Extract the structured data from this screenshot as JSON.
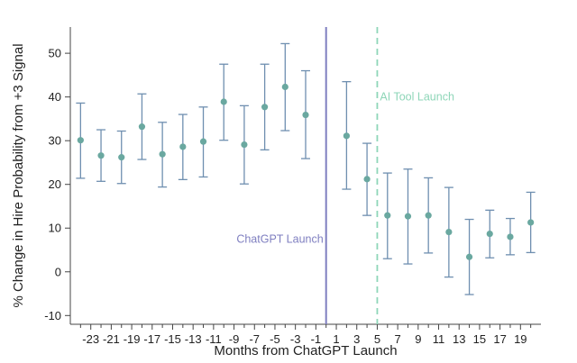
{
  "chart_data": {
    "type": "scatter",
    "xlabel": "Months from ChatGPT Launch",
    "ylabel": "% Change in Hire Probability from +3 Signal",
    "xlim": [
      -25,
      21
    ],
    "ylim": [
      -12,
      56
    ],
    "x_ticks": [
      -23,
      -21,
      -19,
      -17,
      -15,
      -13,
      -11,
      -9,
      -7,
      -5,
      -3,
      -1,
      1,
      3,
      5,
      7,
      9,
      11,
      13,
      15,
      17,
      19
    ],
    "y_ticks": [
      -10,
      0,
      10,
      20,
      30,
      40,
      50
    ],
    "colors": {
      "point": "#6aa8a0",
      "errorbar": "#6f8fb0",
      "chatgpt_line": "#7f7fc0",
      "tool_line": "#8ed6b8"
    },
    "series": [
      {
        "points": [
          {
            "x": -24,
            "y": 30.1,
            "lo": 21.4,
            "hi": 38.6
          },
          {
            "x": -22,
            "y": 26.6,
            "lo": 20.7,
            "hi": 32.5
          },
          {
            "x": -20,
            "y": 26.2,
            "lo": 20.2,
            "hi": 32.2
          },
          {
            "x": -18,
            "y": 33.2,
            "lo": 25.7,
            "hi": 40.7
          },
          {
            "x": -16,
            "y": 26.9,
            "lo": 19.4,
            "hi": 34.2
          },
          {
            "x": -14,
            "y": 28.6,
            "lo": 21.1,
            "hi": 36.0
          },
          {
            "x": -12,
            "y": 29.8,
            "lo": 21.7,
            "hi": 37.7
          },
          {
            "x": -10,
            "y": 38.9,
            "lo": 30.1,
            "hi": 47.5
          },
          {
            "x": -8,
            "y": 29.1,
            "lo": 20.1,
            "hi": 38.0
          },
          {
            "x": -6,
            "y": 37.7,
            "lo": 27.9,
            "hi": 47.5
          },
          {
            "x": -4,
            "y": 42.3,
            "lo": 32.3,
            "hi": 52.2
          },
          {
            "x": -2,
            "y": 35.9,
            "lo": 25.9,
            "hi": 46.0
          },
          {
            "x": 2,
            "y": 31.1,
            "lo": 18.9,
            "hi": 43.5
          },
          {
            "x": 4,
            "y": 21.2,
            "lo": 12.9,
            "hi": 29.4
          },
          {
            "x": 6,
            "y": 12.9,
            "lo": 3.0,
            "hi": 22.6
          },
          {
            "x": 8,
            "y": 12.7,
            "lo": 1.8,
            "hi": 23.5
          },
          {
            "x": 10,
            "y": 12.9,
            "lo": 4.3,
            "hi": 21.5
          },
          {
            "x": 12,
            "y": 9.1,
            "lo": -1.2,
            "hi": 19.3
          },
          {
            "x": 14,
            "y": 3.4,
            "lo": -5.2,
            "hi": 12.0
          },
          {
            "x": 16,
            "y": 8.7,
            "lo": 3.2,
            "hi": 14.1
          },
          {
            "x": 18,
            "y": 8.0,
            "lo": 3.9,
            "hi": 12.2
          },
          {
            "x": 20,
            "y": 11.3,
            "lo": 4.4,
            "hi": 18.2
          }
        ]
      }
    ],
    "annotations": [
      {
        "label": "ChatGPT Launch",
        "x": 0,
        "style": "solid",
        "text_y": 7.5,
        "align": "end"
      },
      {
        "label": "AI Tool Launch",
        "x": 5,
        "style": "dashed",
        "text_y": 40,
        "align": "start"
      }
    ],
    "grid": false
  }
}
